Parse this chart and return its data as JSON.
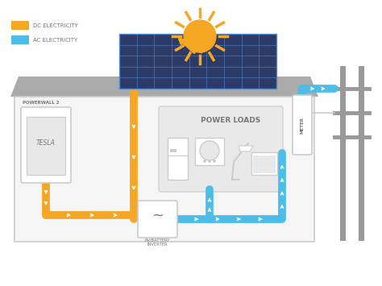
{
  "bg_color": "#ffffff",
  "dc_color": "#F5A623",
  "ac_color": "#4BBDE8",
  "gray_color": "#999999",
  "dark_gray": "#777777",
  "light_gray": "#CCCCCC",
  "very_light_gray": "#E8E8E8",
  "house_fill": "#F5F5F5",
  "roof_fill": "#AAAAAA",
  "solar_dark": "#2B3A67",
  "solar_line": "#5588CC",
  "legend_dc": "DC ELECTRICITY",
  "legend_ac": "AC ELECTRICITY",
  "label_powerwall": "POWERWALL 2",
  "label_tesla": "TESLA",
  "label_power_loads": "POWER LOADS",
  "label_inverter": "PV/BATTERY\nINVERTER",
  "label_meter": "METER",
  "wire_lw": 7
}
